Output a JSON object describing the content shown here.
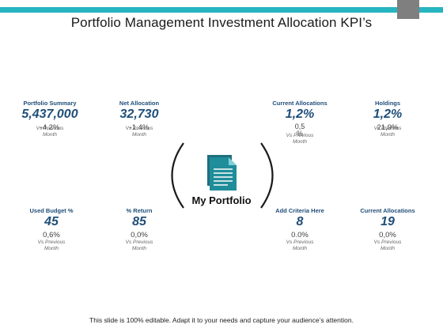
{
  "slide": {
    "title": "Portfolio Management Investment Allocation KPI’s",
    "footer": "This slide is 100% editable. Adapt it to your needs and capture your audience’s attention."
  },
  "center": {
    "label": "My Portfolio",
    "icon": "document-icon",
    "icon_color": "#1f8d9a"
  },
  "kpis": [
    {
      "label": "Portfolio Summary",
      "value": "5,437,000",
      "change": "-4.2%",
      "vs_line1": "Vs Previous",
      "vs_line2": "Month"
    },
    {
      "label": "Net Allocation",
      "value": "32,730",
      "change": "-1.4%",
      "vs_line1": "Vs Previous",
      "vs_line2": "Month"
    },
    {
      "label": "Current Allocations",
      "value": "1,2%",
      "change_line1": "0,5",
      "change_line2": "%",
      "vs_line1": "Vs Previous",
      "vs_line2": "Month"
    },
    {
      "label": "Holdings",
      "value": "1,2%",
      "change": "21,9%",
      "vs_line1": "Vs Previous",
      "vs_line2": "Month"
    },
    {
      "label": "Used Budget %",
      "value": "45",
      "change": "0,6%",
      "vs_line1": "Vs Previous",
      "vs_line2": "Month"
    },
    {
      "label": "% Return",
      "value": "85",
      "change": "0,0%",
      "vs_line1": "Vs Previous",
      "vs_line2": "Month"
    },
    {
      "label": "Add Criteria Here",
      "value": "8",
      "change": "0.0%",
      "vs_line1": "Vs Previous",
      "vs_line2": "Month"
    },
    {
      "label": "Current Allocations",
      "value": "19",
      "change": "0,0%",
      "vs_line1": "Vs Previous",
      "vs_line2": "Month"
    }
  ],
  "colors": {
    "accent": "#26b5c0",
    "kpi_text": "#1f4e79",
    "corner": "#7f7f7f"
  }
}
